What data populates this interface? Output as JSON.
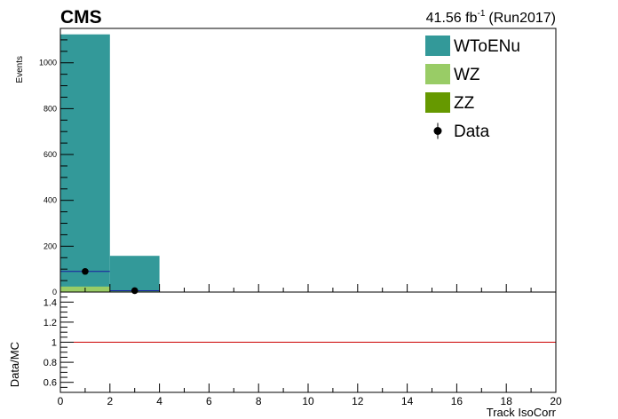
{
  "header": {
    "cms_label": "CMS",
    "lumi_value": "41.56 fb",
    "lumi_exp": "-1",
    "run_label": "(Run2017)"
  },
  "chart_data": [
    {
      "type": "bar",
      "stacked": true,
      "ylabel": "Events",
      "xlim": [
        0,
        20
      ],
      "ylim": [
        0,
        1150
      ],
      "bin_edges": [
        0,
        2,
        4,
        6,
        8,
        10,
        12,
        14,
        16,
        18,
        20
      ],
      "y_ticks": [
        0,
        200,
        400,
        600,
        800,
        1000
      ],
      "series": [
        {
          "name": "WToENu",
          "color": "#339999",
          "values": [
            1100,
            155,
            0,
            0,
            0,
            0,
            0,
            0,
            0,
            0
          ]
        },
        {
          "name": "WZ",
          "color": "#99cc66",
          "values": [
            22,
            3,
            0,
            0,
            0,
            0,
            0,
            0,
            0,
            0
          ]
        },
        {
          "name": "ZZ",
          "color": "#669900",
          "values": [
            2,
            0,
            0,
            0,
            0,
            0,
            0,
            0,
            0,
            0
          ]
        }
      ],
      "data_points": {
        "name": "Data",
        "color": "#000000",
        "x": [
          1,
          3
        ],
        "y": [
          90,
          6
        ],
        "yerr": [
          9.5,
          2.4
        ]
      },
      "legend": {
        "placement": "top-right",
        "entries": [
          "WToENu",
          "WZ",
          "ZZ",
          "Data"
        ]
      }
    },
    {
      "type": "line",
      "ylabel": "Data/MC",
      "xlabel": "Track IsoCorr",
      "xlim": [
        0,
        20
      ],
      "ylim": [
        0.5,
        1.5
      ],
      "x_ticks": [
        0,
        2,
        4,
        6,
        8,
        10,
        12,
        14,
        16,
        18,
        20
      ],
      "y_ticks": [
        0.6,
        0.8,
        1,
        1.2,
        1.4
      ],
      "reference_line": {
        "y": 1,
        "color": "#cc0000"
      }
    }
  ]
}
